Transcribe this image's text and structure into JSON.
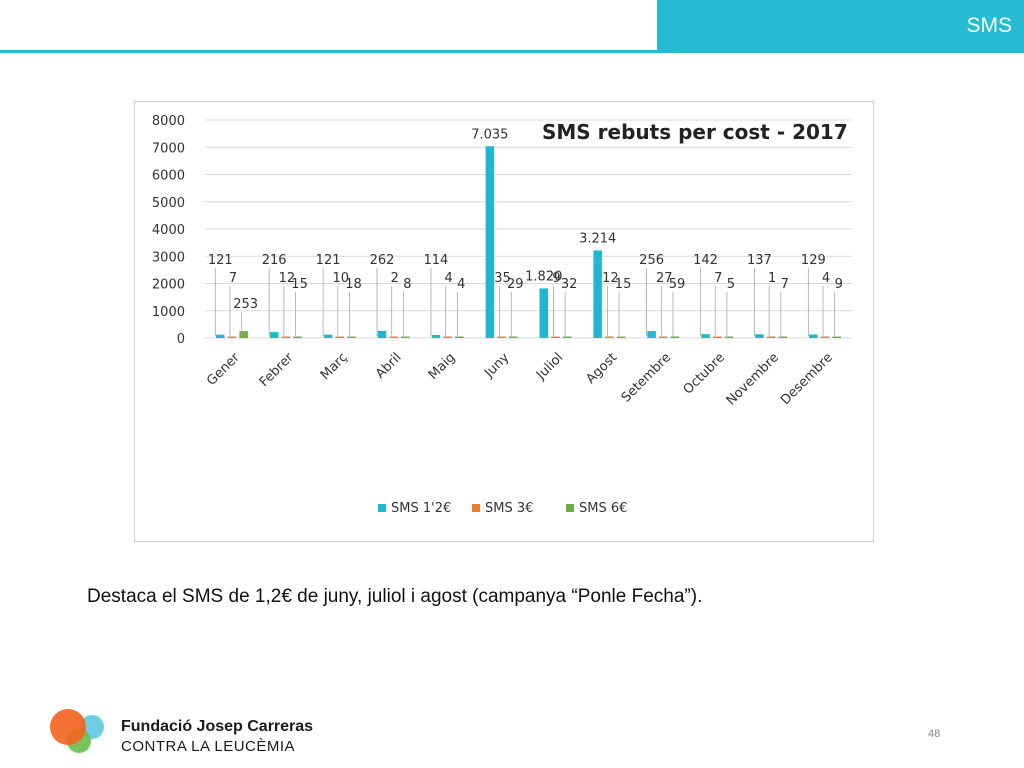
{
  "header": {
    "title": "SMS",
    "accent": "#25bcd1"
  },
  "chart_data": {
    "type": "bar",
    "title": "SMS rebuts per cost - 2017",
    "xlabel": "",
    "ylabel": "",
    "ylim": [
      0,
      8000
    ],
    "yticks": [
      "0",
      "1000",
      "2000",
      "3000",
      "4000",
      "5000",
      "6000",
      "7000",
      "8000"
    ],
    "grid": true,
    "legend_position": "bottom",
    "categories": [
      "Gener",
      "Febrer",
      "Març",
      "Abril",
      "Maig",
      "Juny",
      "Juliol",
      "Agost",
      "Setembre",
      "Octubre",
      "Novembre",
      "Desembre"
    ],
    "series": [
      {
        "name": "SMS 1'2€",
        "color": "#1fb8d0",
        "values": [
          121,
          216,
          121,
          262,
          114,
          7035,
          1820,
          3214,
          256,
          142,
          137,
          129
        ],
        "labels": [
          "121",
          "216",
          "121",
          "262",
          "114",
          "7.035",
          "1.820",
          "3.214",
          "256",
          "142",
          "137",
          "129"
        ]
      },
      {
        "name": "SMS 3€",
        "color": "#ed7d31",
        "values": [
          7,
          12,
          10,
          2,
          4,
          35,
          9,
          12,
          27,
          7,
          1,
          4
        ],
        "labels": [
          "7",
          "12",
          "10",
          "2",
          "4",
          "35",
          "9",
          "12",
          "27",
          "7",
          "1",
          "4"
        ]
      },
      {
        "name": "SMS 6€",
        "color": "#70ad47",
        "values": [
          253,
          15,
          18,
          8,
          4,
          29,
          32,
          15,
          59,
          5,
          7,
          9
        ],
        "labels": [
          "253",
          "15",
          "18",
          "8",
          "4",
          "29",
          "32",
          "15",
          "59",
          "5",
          "7",
          "9"
        ]
      }
    ]
  },
  "caption": "Destaca el SMS de 1,2€ de juny, juliol i agost (campanya “Ponle Fecha”).",
  "footer": {
    "org_name": "Fundació Josep Carreras",
    "org_sub": "CONTRA LA LEUCÈMIA",
    "page_number": "48"
  }
}
